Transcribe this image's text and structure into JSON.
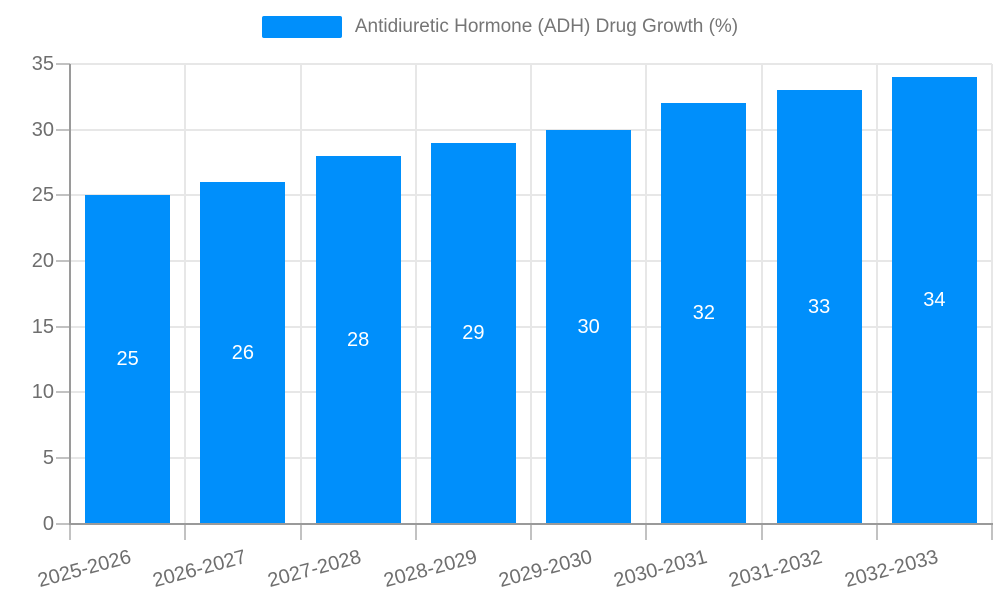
{
  "legend": {
    "series_label": "Antidiuretic Hormone (ADH) Drug Growth (%)"
  },
  "chart_data": {
    "type": "bar",
    "title": "Antidiuretic Hormone (ADH) Drug Growth (%)",
    "categories": [
      "2025-2026",
      "2026-2027",
      "2027-2028",
      "2028-2029",
      "2029-2030",
      "2030-2031",
      "2031-2032",
      "2032-2033"
    ],
    "values": [
      25,
      26,
      28,
      29,
      30,
      32,
      33,
      34
    ],
    "xlabel": "",
    "ylabel": "",
    "ylim": [
      0,
      35
    ],
    "yticks": [
      0,
      5,
      10,
      15,
      20,
      25,
      30,
      35
    ],
    "grid": true,
    "legend_position": "top-center",
    "value_labels": "inside-center",
    "colors": {
      "bar": "#008FFB",
      "value_label": "#ffffff",
      "axis_text": "#6e6e6e",
      "legend_text": "#757575",
      "gridline": "#e7e7e7",
      "axis_line": "#9a9a9a",
      "tick": "#c2c2c2",
      "background": "#ffffff"
    }
  }
}
